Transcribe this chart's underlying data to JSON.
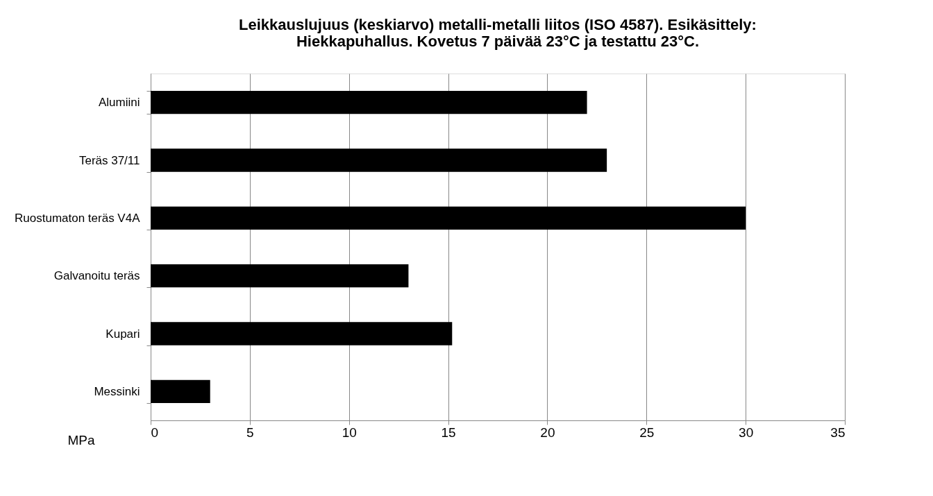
{
  "chart_data": {
    "type": "bar",
    "orientation": "horizontal",
    "title": [
      "Leikkauslujuus (keskiarvo) metalli-metalli liitos (ISO 4587). Esikäsittely:",
      "Hiekkapuhallus. Kovetus 7 päivää 23°C ja testattu 23°C."
    ],
    "xlabel": "MPa",
    "categories": [
      "Alumiini",
      "Teräs 37/11",
      "Ruostumaton teräs V4A",
      "Galvanoitu teräs",
      "Kupari",
      "Messinki"
    ],
    "values": [
      22,
      23,
      30,
      13,
      15.2,
      3
    ],
    "color": "#000000",
    "xlim": [
      0,
      35
    ],
    "xticks": [
      0,
      5,
      10,
      15,
      20,
      25,
      30,
      35
    ],
    "grid": "x"
  }
}
